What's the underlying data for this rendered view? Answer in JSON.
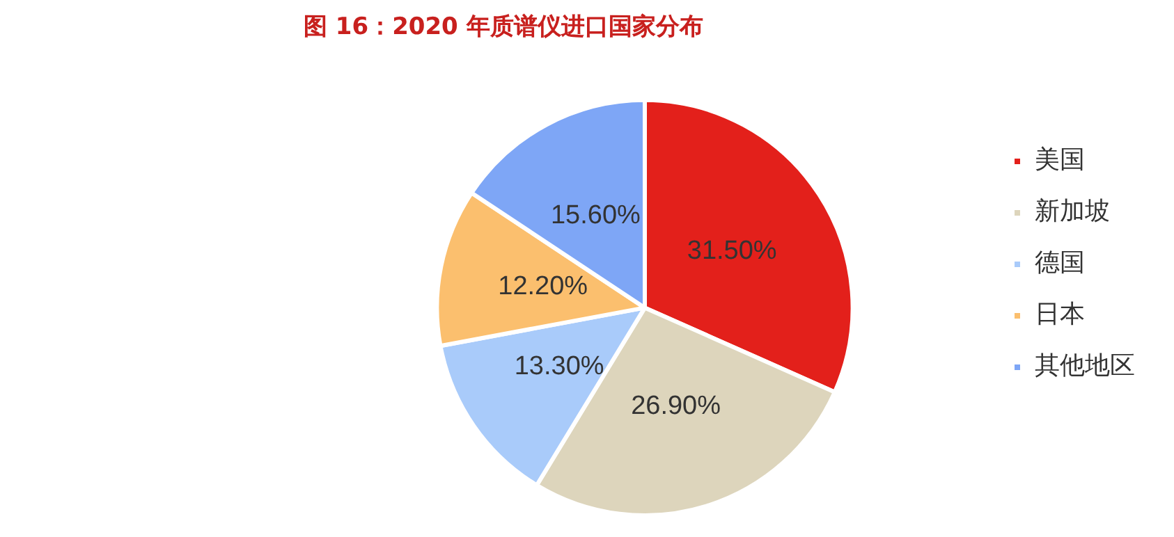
{
  "chart_data": {
    "type": "pie",
    "title": "图 16：2020 年质谱仪进口国家分布",
    "categories": [
      "美国",
      "新加坡",
      "德国",
      "日本",
      "其他地区"
    ],
    "values": [
      31.5,
      26.9,
      13.3,
      12.2,
      15.6
    ],
    "value_labels": [
      "31.50%",
      "26.90%",
      "13.30%",
      "12.20%",
      "15.60%"
    ],
    "colors": [
      "#e3201b",
      "#ddd5bc",
      "#a9cbfa",
      "#fbbf6e",
      "#7ea6f6"
    ],
    "legend": "right"
  }
}
